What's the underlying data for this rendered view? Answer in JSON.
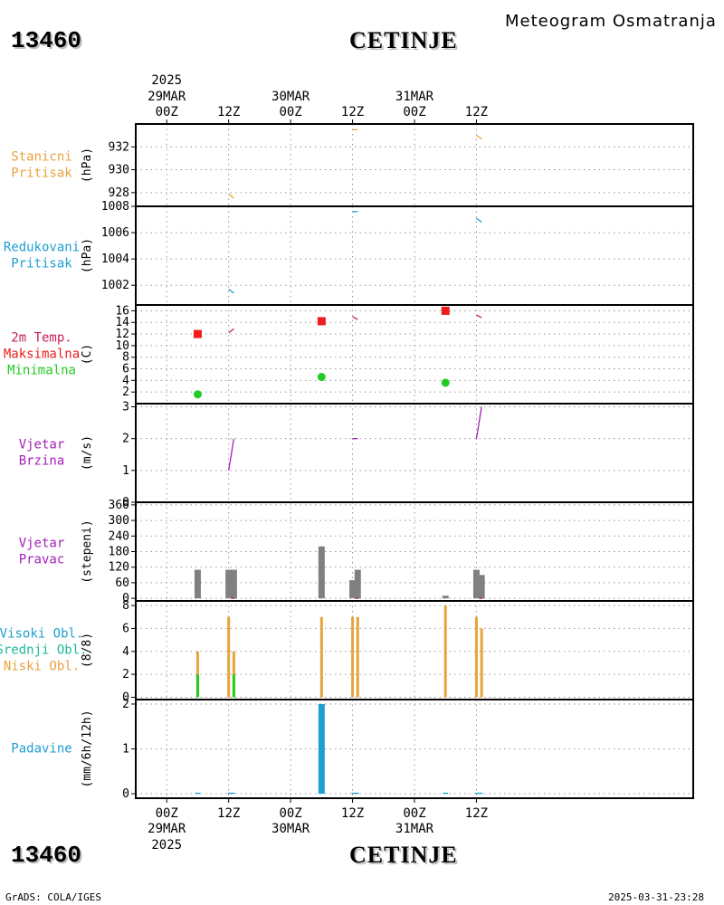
{
  "header": {
    "station_id": "13460",
    "station_name": "CETINJE",
    "chart_title": "Meteogram Osmatranja"
  },
  "footer": {
    "station_id": "13460",
    "station_name": "CETINJE",
    "credit": "GrADS: COLA/IGES",
    "timestamp": "2025-03-31-23:28"
  },
  "colors": {
    "orange": "#e8a33d",
    "cyan": "#1f9ed1",
    "crimson": "#c81e5a",
    "red": "#ee1c1c",
    "green": "#22cc22",
    "purple": "#a21fb8",
    "gray": "#808080",
    "teal": "#1fb89a",
    "grid": "#999999"
  },
  "chart_data": {
    "type": "meteogram",
    "time_axis": {
      "x_range": [
        -6,
        102
      ],
      "ticks": [
        {
          "h": 0,
          "label": "00Z",
          "date": "29MAR",
          "year": "2025"
        },
        {
          "h": 12,
          "label": "12Z"
        },
        {
          "h": 24,
          "label": "00Z",
          "date": "30MAR"
        },
        {
          "h": 36,
          "label": "12Z"
        },
        {
          "h": 48,
          "label": "00Z",
          "date": "31MAR"
        },
        {
          "h": 60,
          "label": "12Z"
        }
      ]
    },
    "panels": [
      {
        "key": "stanicni",
        "labels": [
          {
            "text": "Stanicni",
            "color": "#e8a33d"
          },
          {
            "text": "Pritisak",
            "color": "#e8a33d"
          }
        ],
        "unit": "(hPa)",
        "ylim": [
          926.8,
          934
        ],
        "ticks": [
          928,
          930,
          932
        ],
        "tick_labels": [
          "928",
          "930",
          "932"
        ],
        "series": [
          {
            "type": "line",
            "color": "#e8a33d",
            "points": [
              [
                12,
                927.9
              ],
              [
                13,
                927.5
              ]
            ]
          },
          {
            "type": "line",
            "color": "#e8a33d",
            "points": [
              [
                36,
                933.5
              ],
              [
                37,
                933.5
              ]
            ]
          },
          {
            "type": "line",
            "color": "#e8a33d",
            "points": [
              [
                60,
                933.0
              ],
              [
                61,
                932.7
              ]
            ]
          }
        ]
      },
      {
        "key": "redukovani",
        "labels": [
          {
            "text": "Redukovani",
            "color": "#1f9ed1"
          },
          {
            "text": "Pritisak",
            "color": "#1f9ed1"
          }
        ],
        "unit": "(hPa)",
        "ylim": [
          1000.5,
          1008
        ],
        "ticks": [
          1002,
          1004,
          1006,
          1008
        ],
        "tick_labels": [
          "1002",
          "1004",
          "1006",
          "1008"
        ],
        "series": [
          {
            "type": "line",
            "color": "#1f9ed1",
            "points": [
              [
                12,
                1001.7
              ],
              [
                13,
                1001.4
              ]
            ]
          },
          {
            "type": "line",
            "color": "#1f9ed1",
            "points": [
              [
                36,
                1007.6
              ],
              [
                37,
                1007.6
              ]
            ]
          },
          {
            "type": "line",
            "color": "#1f9ed1",
            "points": [
              [
                60,
                1007.1
              ],
              [
                61,
                1006.8
              ]
            ]
          }
        ]
      },
      {
        "key": "temp",
        "labels": [
          {
            "text": "2m Temp.",
            "color": "#c81e5a"
          },
          {
            "text": "Maksimalna",
            "color": "#ee1c1c"
          },
          {
            "text": "Minimalna",
            "color": "#22cc22"
          }
        ],
        "unit": "(C)",
        "ylim": [
          0,
          17
        ],
        "ticks": [
          2,
          4,
          6,
          8,
          10,
          12,
          14,
          16
        ],
        "tick_labels": [
          "2",
          "4",
          "6",
          "8",
          "10",
          "12",
          "14",
          "16"
        ],
        "series": [
          {
            "type": "line",
            "color": "#c81e5a",
            "points": [
              [
                12,
                12.2
              ],
              [
                13,
                12.9
              ]
            ]
          },
          {
            "type": "line",
            "color": "#c81e5a",
            "points": [
              [
                36,
                15.0
              ],
              [
                37,
                14.5
              ]
            ]
          },
          {
            "type": "line",
            "color": "#c81e5a",
            "points": [
              [
                60,
                15.3
              ],
              [
                61,
                14.8
              ]
            ]
          },
          {
            "type": "square",
            "color": "#ee1c1c",
            "points": [
              [
                6,
                12.0
              ],
              [
                30,
                14.2
              ],
              [
                54,
                16.0
              ]
            ]
          },
          {
            "type": "circle",
            "color": "#22cc22",
            "points": [
              [
                6,
                1.6
              ],
              [
                30,
                4.6
              ],
              [
                54,
                3.6
              ]
            ]
          }
        ]
      },
      {
        "key": "brzina",
        "labels": [
          {
            "text": "Vjetar",
            "color": "#a21fb8"
          },
          {
            "text": "Brzina",
            "color": "#a21fb8"
          }
        ],
        "unit": "(m/s)",
        "ylim": [
          0,
          3.1
        ],
        "ticks": [
          0,
          1,
          2,
          3
        ],
        "tick_labels": [
          "0",
          "1",
          "2",
          "3"
        ],
        "series": [
          {
            "type": "line",
            "color": "#a21fb8",
            "points": [
              [
                12,
                1.0
              ],
              [
                13,
                2.0
              ]
            ]
          },
          {
            "type": "line",
            "color": "#a21fb8",
            "points": [
              [
                36,
                2.0
              ],
              [
                37,
                2.0
              ]
            ]
          },
          {
            "type": "line",
            "color": "#a21fb8",
            "points": [
              [
                60,
                2.0
              ],
              [
                61,
                3.0
              ]
            ]
          }
        ]
      },
      {
        "key": "pravac",
        "labels": [
          {
            "text": "Vjetar",
            "color": "#a21fb8"
          },
          {
            "text": "Pravac",
            "color": "#a21fb8"
          }
        ],
        "unit": "(stepeni)",
        "ylim": [
          -10,
          370
        ],
        "ticks": [
          0,
          60,
          120,
          180,
          240,
          300,
          360
        ],
        "tick_labels": [
          "0",
          "60",
          "120",
          "180",
          "240",
          "300",
          "360"
        ],
        "series": [
          {
            "type": "bar",
            "color": "#808080",
            "points": [
              [
                6,
                110
              ],
              [
                12,
                110
              ],
              [
                13,
                110
              ],
              [
                30,
                200
              ],
              [
                36,
                70
              ],
              [
                37,
                110
              ],
              [
                54,
                10
              ],
              [
                60,
                110
              ],
              [
                61,
                90
              ]
            ]
          },
          {
            "type": "line",
            "color": "#c81e5a",
            "points": [
              [
                12.5,
                0
              ],
              [
                13.2,
                0
              ]
            ]
          },
          {
            "type": "line",
            "color": "#c81e5a",
            "points": [
              [
                36.5,
                0
              ],
              [
                37.2,
                0
              ]
            ]
          },
          {
            "type": "line",
            "color": "#c81e5a",
            "points": [
              [
                60.5,
                0
              ],
              [
                61.2,
                0
              ]
            ]
          }
        ]
      },
      {
        "key": "oblaci",
        "labels": [
          {
            "text": "Visoki Obl.",
            "color": "#1f9ed1"
          },
          {
            "text": "Srednji Obl.",
            "color": "#1fb89a"
          },
          {
            "text": "Niski Obl.",
            "color": "#e8a33d"
          }
        ],
        "unit": "(8/8)",
        "ylim": [
          -0.2,
          8.4
        ],
        "ticks": [
          0,
          2,
          4,
          6,
          8
        ],
        "tick_labels": [
          "0",
          "2",
          "4",
          "6",
          "8"
        ],
        "series": [
          {
            "type": "bar",
            "color": "#e8a33d",
            "points": [
              [
                6,
                4
              ],
              [
                12,
                7
              ],
              [
                13,
                4
              ],
              [
                30,
                7
              ],
              [
                36,
                7
              ],
              [
                37,
                7
              ],
              [
                54,
                8
              ],
              [
                60,
                7
              ],
              [
                61,
                6
              ]
            ]
          },
          {
            "type": "bar",
            "color": "#22cc22",
            "points": [
              [
                6,
                2
              ],
              [
                13,
                2
              ]
            ]
          }
        ]
      },
      {
        "key": "padavine",
        "labels": [
          {
            "text": "Padavine",
            "color": "#1f9ed1"
          }
        ],
        "unit": "(mm/6h/12h)",
        "ylim": [
          -0.1,
          2.1
        ],
        "ticks": [
          0,
          1,
          2
        ],
        "tick_labels": [
          "0",
          "1",
          "2"
        ],
        "series": [
          {
            "type": "wide-bar",
            "color": "#1f9ed1",
            "points": [
              [
                30,
                2.0
              ]
            ]
          },
          {
            "type": "line",
            "color": "#1f9ed1",
            "points": [
              [
                5.5,
                0.01
              ],
              [
                6.5,
                0.01
              ]
            ]
          },
          {
            "type": "line",
            "color": "#1f9ed1",
            "points": [
              [
                11.8,
                0.01
              ],
              [
                13.2,
                0.01
              ]
            ]
          },
          {
            "type": "line",
            "color": "#1f9ed1",
            "points": [
              [
                35.8,
                0.01
              ],
              [
                37.2,
                0.01
              ]
            ]
          },
          {
            "type": "line",
            "color": "#1f9ed1",
            "points": [
              [
                53.5,
                0.01
              ],
              [
                54.5,
                0.01
              ]
            ]
          },
          {
            "type": "line",
            "color": "#1f9ed1",
            "points": [
              [
                59.8,
                0.01
              ],
              [
                61.2,
                0.01
              ]
            ]
          }
        ]
      }
    ]
  }
}
